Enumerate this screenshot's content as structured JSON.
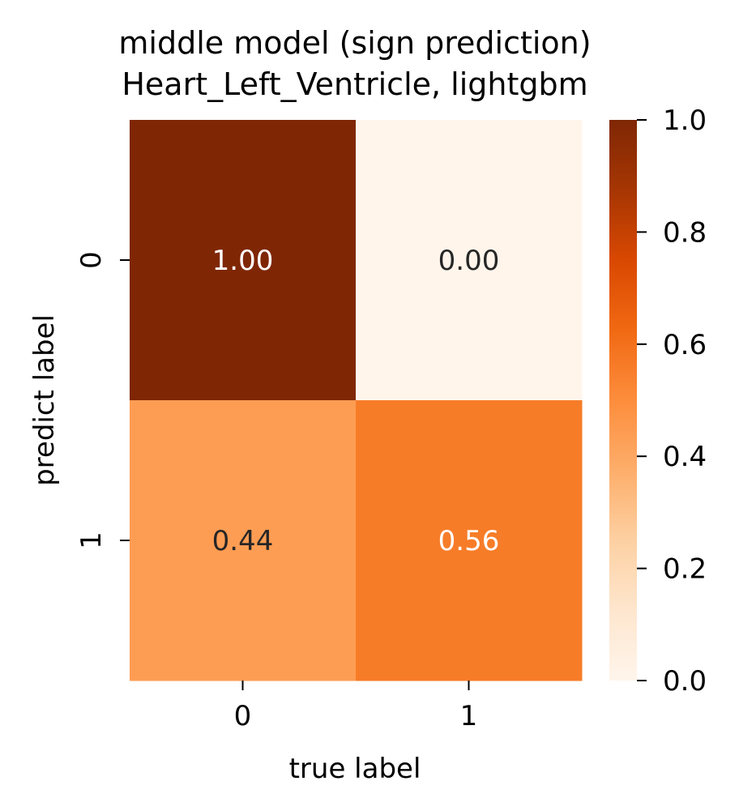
{
  "chart_data": {
    "type": "heatmap",
    "title": "middle model (sign prediction)",
    "subtitle": "Heart_Left_Ventricle, lightgbm",
    "xlabel": "true label",
    "ylabel": "predict label",
    "x_categories": [
      "0",
      "1"
    ],
    "y_categories": [
      "0",
      "1"
    ],
    "values": [
      [
        1.0,
        0.0
      ],
      [
        0.44,
        0.56
      ]
    ],
    "value_format": "2 decimals",
    "colormap": "Oranges",
    "colorbar": {
      "range": [
        0.0,
        1.0
      ],
      "ticks": [
        "0.0",
        "0.2",
        "0.4",
        "0.6",
        "0.8",
        "1.0"
      ]
    },
    "colors": {
      "low": "#fff5eb",
      "high": "#7f2704",
      "annot_dark": "#262626",
      "annot_light": "#ffffff"
    }
  }
}
